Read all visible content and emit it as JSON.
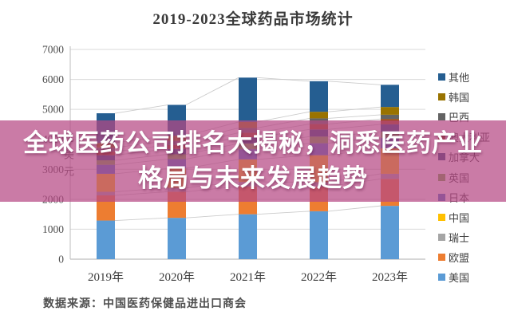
{
  "title": "2019-2023全球药品市场统计",
  "overlay": {
    "line1": "全球医药公司排名大揭秘，洞悉医药产业",
    "line2": "格局与未来发展趋势",
    "band_color_rgba": "rgba(181,72,131,0.72)",
    "text_color": "#ffffff"
  },
  "footer": {
    "source": "数据来源：中国医药保健品进出口商会"
  },
  "chart_data": {
    "type": "bar",
    "stacked": true,
    "title": "2019-2023全球药品市场统计",
    "ylabel": "亿美元",
    "xlabel": "",
    "ylim": [
      0,
      7000
    ],
    "yticks": [
      0,
      1000,
      2000,
      3000,
      4000,
      5000,
      6000,
      7000
    ],
    "grid": true,
    "legend_position": "right",
    "legend_order_top_to_bottom": [
      "其他",
      "韩国",
      "巴西",
      "澳大利亚",
      "加拿大",
      "英国",
      "日本",
      "中国",
      "瑞士",
      "欧盟",
      "美国"
    ],
    "categories": [
      "2019年",
      "2020年",
      "2021年",
      "2022年",
      "2023年"
    ],
    "series": [
      {
        "name": "美国",
        "color": "#5b9bd5",
        "values": [
          1290,
          1380,
          1500,
          1600,
          1780
        ]
      },
      {
        "name": "欧盟",
        "color": "#ed7d31",
        "values": [
          840,
          870,
          930,
          820,
          900
        ]
      },
      {
        "name": "瑞士",
        "color": "#a5a5a5",
        "values": [
          120,
          130,
          150,
          150,
          170
        ]
      },
      {
        "name": "中国",
        "color": "#ffc000",
        "values": [
          600,
          650,
          750,
          900,
          850
        ]
      },
      {
        "name": "日本",
        "color": "#4472c4",
        "values": [
          300,
          310,
          340,
          400,
          350
        ]
      },
      {
        "name": "英国",
        "color": "#70ad47",
        "values": [
          150,
          160,
          190,
          220,
          200
        ]
      },
      {
        "name": "加拿大",
        "color": "#264478",
        "values": [
          170,
          180,
          210,
          240,
          250
        ]
      },
      {
        "name": "澳大利亚",
        "color": "#9e480e",
        "values": [
          120,
          130,
          150,
          180,
          180
        ]
      },
      {
        "name": "巴西",
        "color": "#636363",
        "values": [
          130,
          140,
          160,
          190,
          140
        ]
      },
      {
        "name": "韩国",
        "color": "#997300",
        "values": [
          160,
          170,
          200,
          220,
          260
        ]
      },
      {
        "name": "其他",
        "color": "#255e91",
        "values": [
          990,
          1030,
          1480,
          1020,
          740
        ]
      }
    ],
    "totals": [
      4870,
      5150,
      6060,
      5940,
      5820
    ],
    "connector_lines": true,
    "gridline_color": "#d9d9d9",
    "axis_color": "#bdbdbd",
    "connector_color": "#c9c9c9",
    "tick_label_color": "#4d4d4d",
    "x_label_color": "#3c3c3c"
  }
}
